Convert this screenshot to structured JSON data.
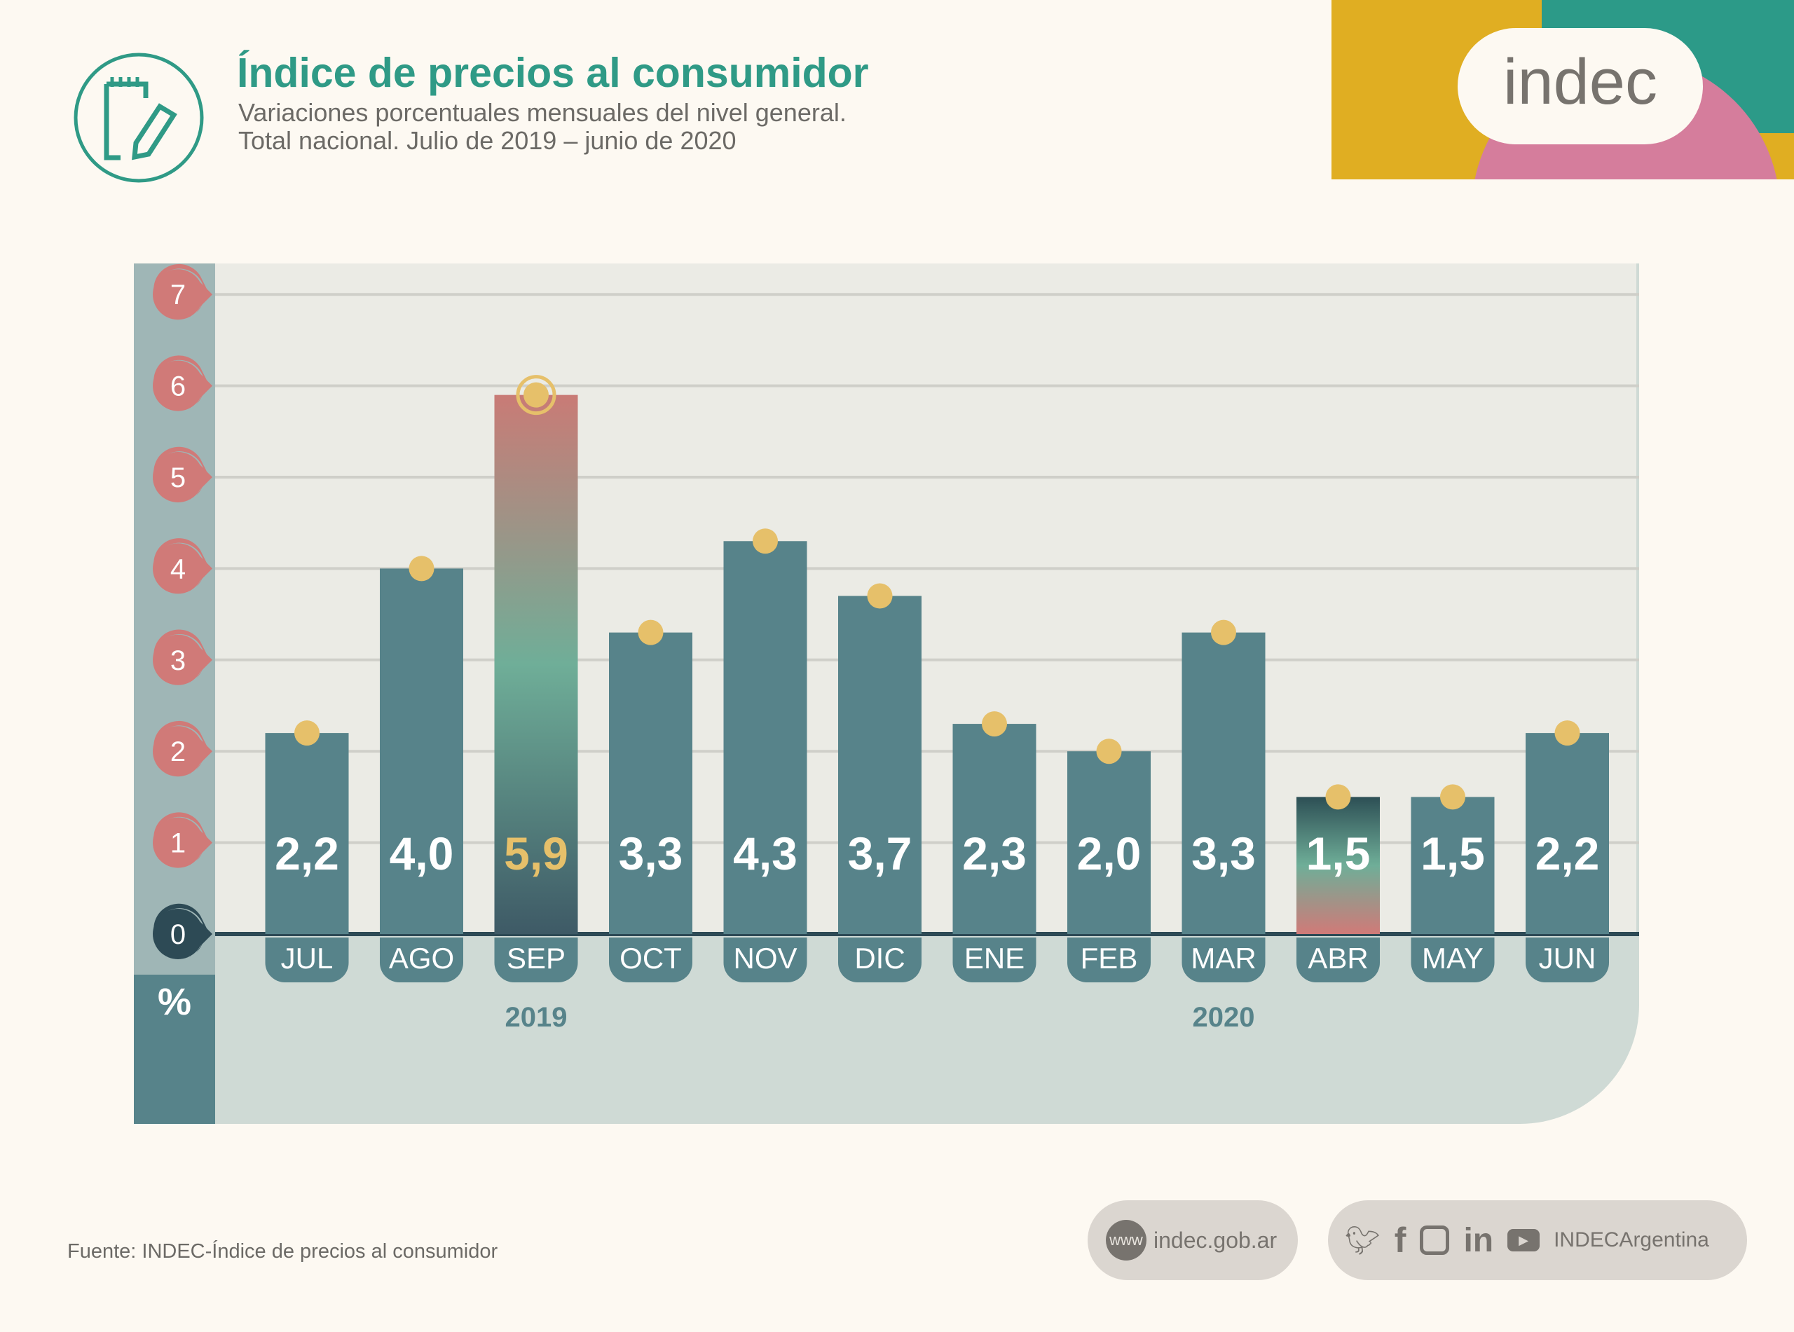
{
  "header": {
    "title": "Índice de precios al consumidor",
    "subtitle_1": "Variaciones porcentuales mensuales del nivel general.",
    "subtitle_2": "Total nacional. Julio de 2019 – junio de 2020",
    "logo_text": "indec"
  },
  "chart_data": {
    "type": "bar",
    "categories": [
      "JUL",
      "AGO",
      "SEP",
      "OCT",
      "NOV",
      "DIC",
      "ENE",
      "FEB",
      "MAR",
      "ABR",
      "MAY",
      "JUN"
    ],
    "values": [
      2.2,
      4.0,
      5.9,
      3.3,
      4.3,
      3.7,
      2.3,
      2.0,
      3.3,
      1.5,
      1.5,
      2.2
    ],
    "value_labels": [
      "2,2",
      "4,0",
      "5,9",
      "3,3",
      "4,3",
      "3,7",
      "2,3",
      "2,0",
      "3,3",
      "1,5",
      "1,5",
      "2,2"
    ],
    "year_labels": [
      {
        "label": "2019",
        "category": "SEP"
      },
      {
        "label": "2020",
        "category": "MAR"
      }
    ],
    "ylabel": "%",
    "yticks": [
      0,
      1,
      2,
      3,
      4,
      5,
      6,
      7
    ],
    "ylim": [
      0,
      7
    ],
    "grid": true,
    "highlight": {
      "max": "SEP",
      "min": "ABR"
    },
    "colors": {
      "bar": "#57838a",
      "dot": "#e6c06a",
      "tick": "#d07a78",
      "highlight_label": "#e6c06a"
    }
  },
  "footer": {
    "source": "Fuente: INDEC-Índice de precios al consumidor",
    "web_badge": "www",
    "web": "indec.gob.ar",
    "social": "INDECArgentina",
    "social_icons": [
      "twitter-icon",
      "facebook-icon",
      "instagram-icon",
      "linkedin-icon",
      "youtube-icon"
    ]
  }
}
